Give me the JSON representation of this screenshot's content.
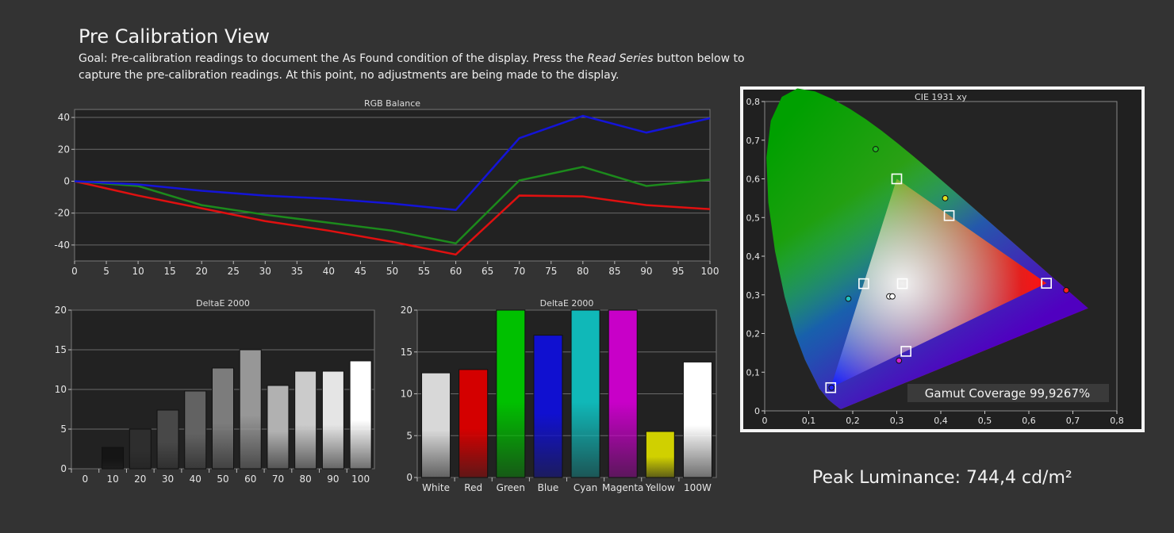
{
  "page": {
    "title": "Pre Calibration View",
    "goal_before": "Goal: Pre-calibration readings to document the As Found condition of the display. Press the ",
    "goal_button": "Read Series",
    "goal_after": " button below to capture the pre-calibration readings. At this point, no adjustments are being made to the display.",
    "peak_luminance": "Peak Luminance: 744,4 cd/m²"
  },
  "chart_data": [
    {
      "type": "line",
      "title": "RGB Balance",
      "x": [
        0,
        10,
        20,
        30,
        40,
        50,
        60,
        70,
        80,
        90,
        100
      ],
      "xticks": [
        0,
        5,
        10,
        15,
        20,
        25,
        30,
        35,
        40,
        45,
        50,
        55,
        60,
        65,
        70,
        75,
        80,
        85,
        90,
        95,
        100
      ],
      "yticks": [
        40,
        20,
        0,
        -20,
        -40
      ],
      "xlim": [
        0,
        100
      ],
      "ylim": [
        -50,
        45
      ],
      "grid": true,
      "series": [
        {
          "color": "#e01010",
          "values": [
            0,
            -9,
            -17,
            -25,
            -31,
            -38,
            -46,
            -9,
            -9.5,
            -15,
            -17.5
          ]
        },
        {
          "color": "#1c8a1c",
          "values": [
            0,
            -3,
            -15,
            -21,
            -26,
            -31,
            -39,
            0.5,
            9,
            -3,
            1
          ]
        },
        {
          "color": "#1414d8",
          "values": [
            0,
            -2,
            -6,
            -9,
            -11,
            -14,
            -18,
            27,
            41,
            30.5,
            39.5
          ]
        }
      ]
    },
    {
      "type": "bar",
      "title": "DeltaE 2000",
      "categories": [
        "0",
        "10",
        "20",
        "30",
        "40",
        "50",
        "60",
        "70",
        "80",
        "90",
        "100"
      ],
      "values": [
        0,
        2.7,
        5,
        7.4,
        9.8,
        12.7,
        15,
        10.5,
        12.3,
        12.3,
        13.6
      ],
      "colors": [
        "#000000",
        "#151515",
        "#2e2e2e",
        "#484848",
        "#626262",
        "#7c7c7c",
        "#979797",
        "#b1b1b1",
        "#cbcbcb",
        "#e5e5e5",
        "#ffffff"
      ],
      "yticks": [
        20,
        15,
        10,
        5,
        0
      ],
      "ylim": [
        0,
        20
      ],
      "grid": true
    },
    {
      "type": "bar",
      "title": "DeltaE 2000",
      "categories": [
        "White",
        "Red",
        "Green",
        "Blue",
        "Cyan",
        "Magenta",
        "Yellow",
        "100W"
      ],
      "values": [
        12.5,
        12.9,
        20,
        17,
        20,
        20,
        5.5,
        13.8
      ],
      "colors": [
        "#d8d8d8",
        "#d40000",
        "#00c000",
        "#1010d0",
        "#10b8b8",
        "#c800c8",
        "#d0d000",
        "#ffffff"
      ],
      "yticks": [
        20,
        15,
        10,
        5,
        0
      ],
      "ylim": [
        0,
        20
      ],
      "grid": true
    },
    {
      "type": "scatter",
      "title": "CIE 1931 xy",
      "xticks": [
        "0",
        "0,1",
        "0,2",
        "0,3",
        "0,4",
        "0,5",
        "0,6",
        "0,7",
        "0,8"
      ],
      "yticks": [
        "0,8",
        "0,7",
        "0,6",
        "0,5",
        "0,4",
        "0,3",
        "0,2",
        "0,1",
        "0"
      ],
      "xlim": [
        0,
        0.8
      ],
      "ylim": [
        0,
        0.8
      ],
      "gamut_coverage": "Gamut Coverage 99,9267%",
      "targets": [
        {
          "x": 0.64,
          "y": 0.33
        },
        {
          "x": 0.3,
          "y": 0.6
        },
        {
          "x": 0.15,
          "y": 0.06
        },
        {
          "x": 0.225,
          "y": 0.329
        },
        {
          "x": 0.321,
          "y": 0.154
        },
        {
          "x": 0.419,
          "y": 0.505
        },
        {
          "x": 0.3127,
          "y": 0.329
        }
      ],
      "measured": [
        {
          "x": 0.685,
          "y": 0.312,
          "color": "#ff2020"
        },
        {
          "x": 0.252,
          "y": 0.677,
          "color": "#20c020"
        },
        {
          "x": 0.152,
          "y": 0.06,
          "color": "#2020ff"
        },
        {
          "x": 0.19,
          "y": 0.29,
          "color": "#20c0c0"
        },
        {
          "x": 0.305,
          "y": 0.13,
          "color": "#d020d0"
        },
        {
          "x": 0.41,
          "y": 0.55,
          "color": "#e0e020"
        },
        {
          "x": 0.283,
          "y": 0.296,
          "color": "#ffffff"
        },
        {
          "x": 0.29,
          "y": 0.296,
          "color": "#ffffff"
        }
      ]
    }
  ]
}
